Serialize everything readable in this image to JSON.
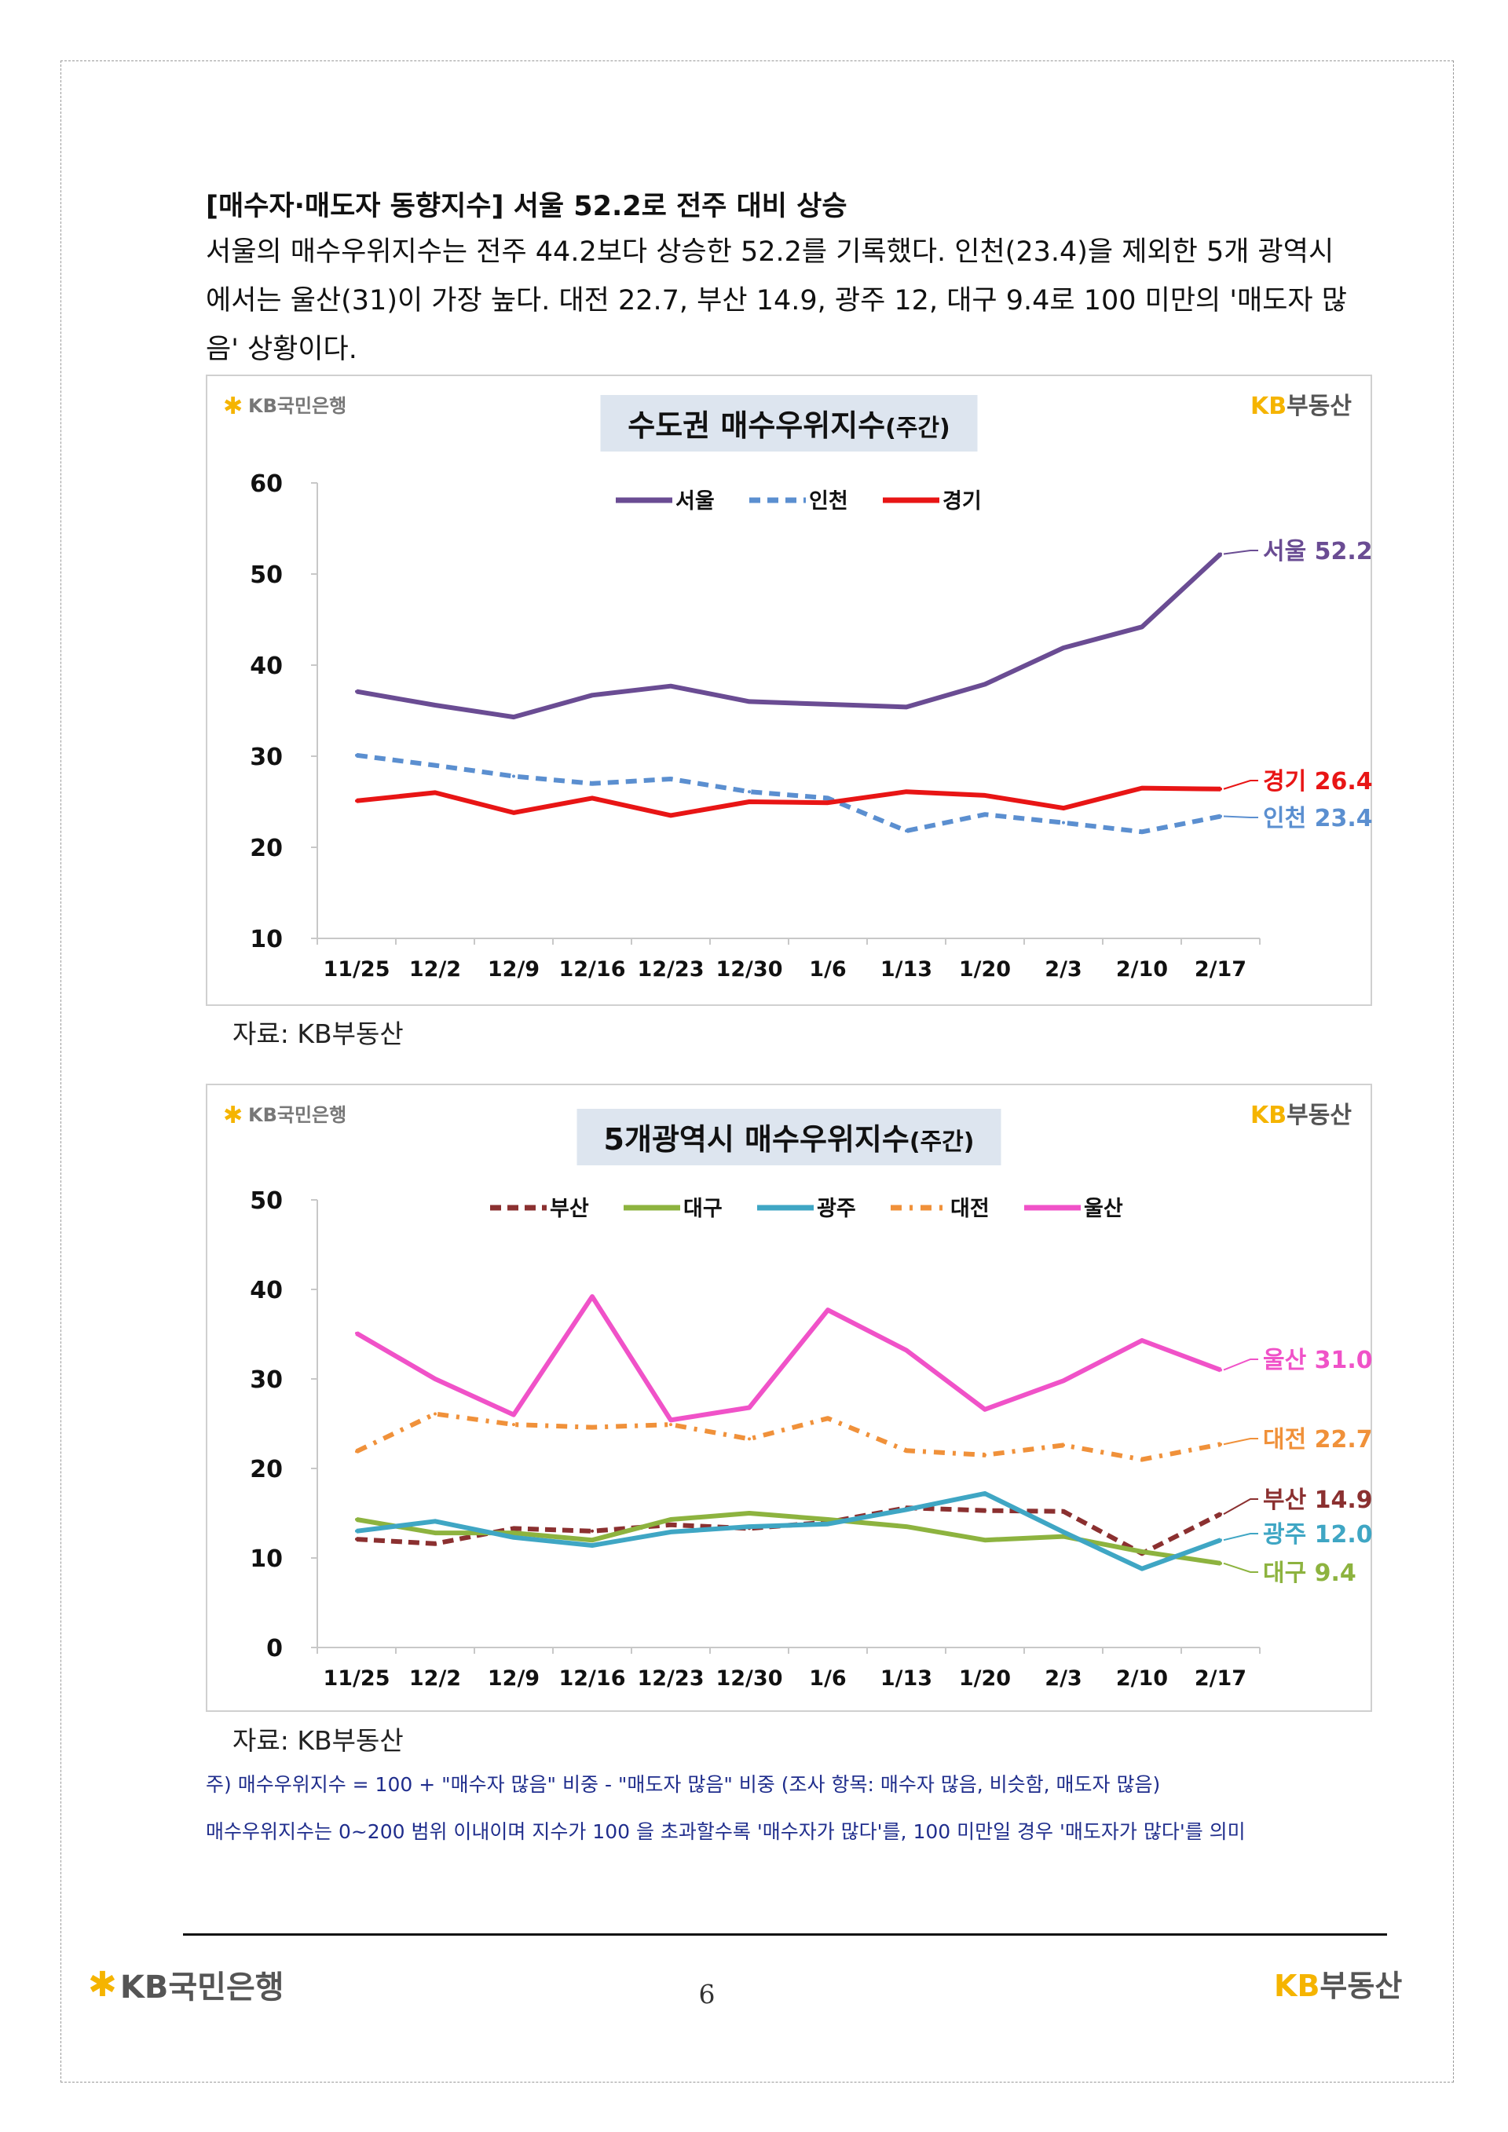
{
  "heading": "[매수자·매도자 동향지수] 서울 52.2로 전주 대비 상승",
  "paragraph": "서울의 매수우위지수는 전주 44.2보다 상승한 52.2를 기록했다. 인천(23.4)을 제외한 5개 광역시에서는 울산(31)이 가장 높다. 대전 22.7, 부산 14.9, 광주 12, 대구 9.4로 100 미만의 '매도자 많음' 상황이다.",
  "brand": {
    "bank": "KB국민은행",
    "realty_kb": "KB",
    "realty_name": "부동산",
    "accent": "#f5b400"
  },
  "source_label": "자료: KB부동산",
  "note1": "주) 매수우위지수 = 100 + \"매수자 많음\" 비중 - \"매도자 많음\" 비중   (조사 항목: 매수자 많음, 비슷함, 매도자 많음)",
  "note2": "매수우위지수는 0~200 범위 이내이며 지수가 100 을 초과할수록 '매수자가 많다'를, 100 미만일 경우 '매도자가 많다'를 의미",
  "page_number": "6",
  "chart_data": [
    {
      "type": "line",
      "title": "수도권 매수우위지수",
      "title_suffix": "(주간)",
      "categories": [
        "11/25",
        "12/2",
        "12/9",
        "12/16",
        "12/23",
        "12/30",
        "1/6",
        "1/13",
        "1/20",
        "2/3",
        "2/10",
        "2/17"
      ],
      "ylim": [
        10,
        60
      ],
      "yticks": [
        10,
        20,
        30,
        40,
        50,
        60
      ],
      "series": [
        {
          "name": "서울",
          "color": "#6a4c93",
          "dash": "",
          "values": [
            37.1,
            35.6,
            34.3,
            36.7,
            37.7,
            36.0,
            35.7,
            35.4,
            37.9,
            41.9,
            44.2,
            52.2
          ],
          "end_label": "서울 52.2"
        },
        {
          "name": "인천",
          "color": "#5b8fd0",
          "dash": "14,9",
          "values": [
            30.1,
            29.0,
            27.8,
            27.0,
            27.5,
            26.1,
            25.4,
            21.8,
            23.6,
            22.7,
            21.7,
            23.4
          ],
          "end_label": "인천 23.4"
        },
        {
          "name": "경기",
          "color": "#e81515",
          "dash": "",
          "values": [
            25.1,
            26.0,
            23.8,
            25.4,
            23.5,
            25.0,
            24.9,
            26.1,
            25.7,
            24.3,
            26.5,
            26.4
          ],
          "end_label": "경기 26.4"
        }
      ]
    },
    {
      "type": "line",
      "title": "5개광역시 매수우위지수",
      "title_suffix": "(주간)",
      "categories": [
        "11/25",
        "12/2",
        "12/9",
        "12/16",
        "12/23",
        "12/30",
        "1/6",
        "1/13",
        "1/20",
        "2/3",
        "2/10",
        "2/17"
      ],
      "ylim": [
        0,
        50
      ],
      "yticks": [
        0,
        10,
        20,
        30,
        40,
        50
      ],
      "series": [
        {
          "name": "부산",
          "color": "#8b3030",
          "dash": "14,8",
          "values": [
            12.1,
            11.6,
            13.3,
            13.0,
            13.7,
            13.3,
            14.0,
            15.6,
            15.3,
            15.2,
            10.5,
            14.9
          ],
          "end_label": "부산 14.9"
        },
        {
          "name": "대구",
          "color": "#8db33f",
          "dash": "",
          "values": [
            14.3,
            12.8,
            12.8,
            12.0,
            14.3,
            15.0,
            14.3,
            13.5,
            12.0,
            12.4,
            10.7,
            9.4
          ],
          "end_label": "대구 9.4"
        },
        {
          "name": "광주",
          "color": "#3fa6c4",
          "dash": "",
          "values": [
            13.0,
            14.1,
            12.3,
            11.4,
            12.9,
            13.5,
            13.8,
            15.4,
            17.2,
            12.9,
            8.8,
            12.0
          ],
          "end_label": "광주 12.0"
        },
        {
          "name": "대전",
          "color": "#f0913a",
          "dash": "14,10,4,10",
          "values": [
            21.9,
            26.1,
            24.9,
            24.6,
            24.9,
            23.3,
            25.6,
            22.0,
            21.5,
            22.6,
            21.0,
            22.7
          ],
          "end_label": "대전 22.7"
        },
        {
          "name": "울산",
          "color": "#f052c8",
          "dash": "",
          "values": [
            35.1,
            30.0,
            26.0,
            39.2,
            25.4,
            26.8,
            37.7,
            33.2,
            26.6,
            29.8,
            34.3,
            31.0
          ],
          "end_label": "울산 31.0"
        }
      ]
    }
  ]
}
